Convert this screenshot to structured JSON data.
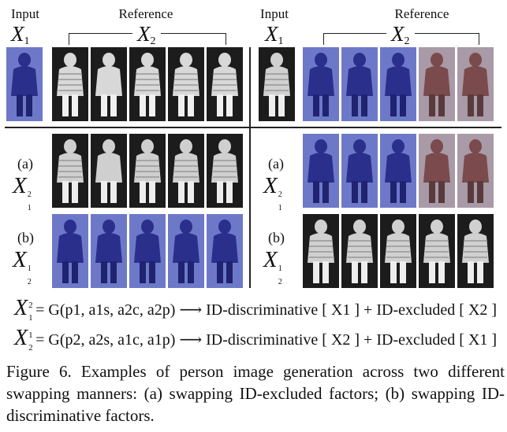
{
  "headers": {
    "input_label": "Input",
    "reference_label": "Reference",
    "x1": "X",
    "x1_sub": "1",
    "x2": "X",
    "x2_sub": "2"
  },
  "rows": {
    "a_label": "(a)",
    "b_label": "(b)",
    "a_sym": "X",
    "a_sup": "2",
    "a_sub": "1",
    "b_sym": "X",
    "b_sup": "1",
    "b_sub": "2"
  },
  "equations": {
    "eq1_lhs": "X",
    "eq1_lhs_sup": "2",
    "eq1_lhs_sub": "1",
    "eq1_body": "= G(p1, a1s, a2c, a2p) ⟶ ID-discriminative [ X1 ] + ID-excluded [ X2 ]",
    "eq2_lhs": "X",
    "eq2_lhs_sup": "1",
    "eq2_lhs_sub": "2",
    "eq2_body": "= G(p2, a2s, a1c, a1p) ⟶ ID-discriminative [ X2 ] + ID-excluded [ X1 ]"
  },
  "caption": "Figure 6. Examples of person image generation across two different swapping manners: (a) swapping ID-excluded factors; (b) swapping ID-discriminative factors.",
  "colors": {
    "ir_bg": "#1c1c1c",
    "rgb_bg": "#6d79c8",
    "rgb_body": "#2b2f8c",
    "brown_body": "#7a4a4c"
  }
}
